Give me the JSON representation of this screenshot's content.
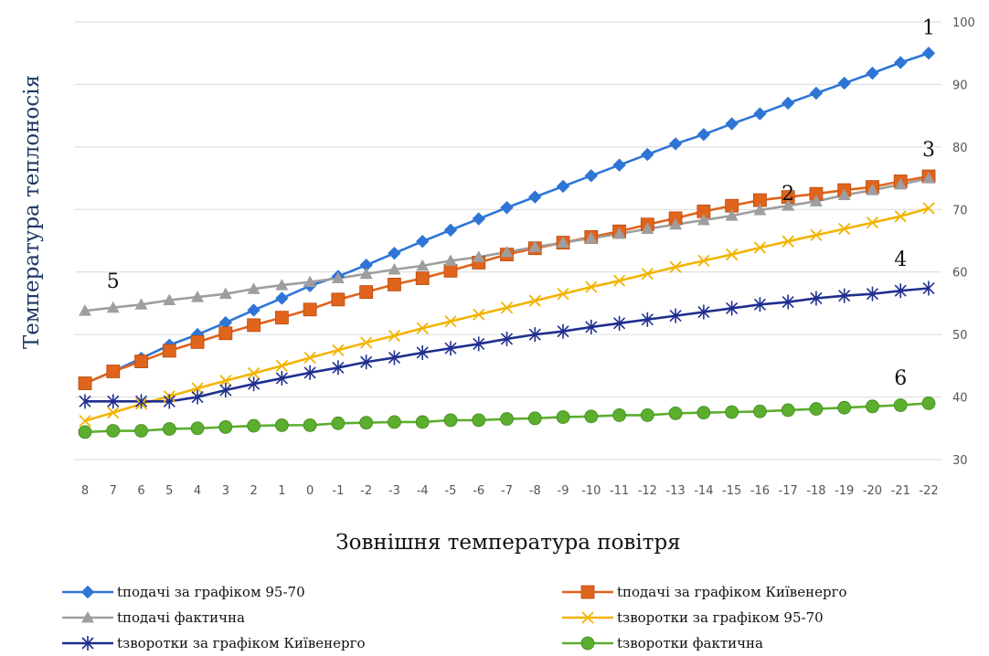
{
  "chart_data": {
    "type": "line",
    "ylabel": "Температура теплоносія",
    "xlabel": "Зовнішня температура повітря",
    "categories": [
      "8",
      "7",
      "6",
      "5",
      "4",
      "3",
      "2",
      "1",
      "0",
      "-1",
      "-2",
      "-3",
      "-4",
      "-5",
      "-6",
      "-7",
      "-8",
      "-9",
      "-10",
      "-11",
      "-12",
      "-13",
      "-14",
      "-15",
      "-16",
      "-17",
      "-18",
      "-19",
      "-20",
      "-21",
      "-22"
    ],
    "ylim": [
      30,
      100
    ],
    "yticks": [
      "30",
      "40",
      "50",
      "60",
      "70",
      "80",
      "90",
      "100"
    ],
    "y_axis_side": "right",
    "grid": "horizontal",
    "legend_position": "bottom",
    "series": [
      {
        "name": "tподачі за графіком 95-70",
        "color": "#2e75d6",
        "marker": "diamond",
        "values": [
          42.2,
          44.1,
          46.2,
          48.3,
          50.0,
          51.9,
          53.9,
          55.8,
          57.8,
          59.3,
          61.1,
          63.0,
          64.9,
          66.7,
          68.5,
          70.3,
          72.0,
          73.7,
          75.4,
          77.1,
          78.8,
          80.5,
          82.0,
          83.7,
          85.3,
          87.0,
          88.6,
          90.2,
          91.8,
          93.5,
          95.0
        ]
      },
      {
        "name": "tподачі за графіком Київенерго",
        "color": "#e0641c",
        "marker": "square",
        "values": [
          42.2,
          44.1,
          45.7,
          47.4,
          48.8,
          50.2,
          51.5,
          52.7,
          54.0,
          55.6,
          56.8,
          58.0,
          59.0,
          60.2,
          61.5,
          62.8,
          63.8,
          64.7,
          65.6,
          66.5,
          67.6,
          68.6,
          69.7,
          70.6,
          71.5,
          72.0,
          72.5,
          73.1,
          73.6,
          74.5,
          75.3
        ]
      },
      {
        "name": "tподачі фактична",
        "color": "#9e9e9e",
        "marker": "triangle",
        "values": [
          53.8,
          54.3,
          54.8,
          55.5,
          56.0,
          56.5,
          57.3,
          57.9,
          58.4,
          59.0,
          59.7,
          60.4,
          61.0,
          61.8,
          62.4,
          63.2,
          64.0,
          64.7,
          65.4,
          66.1,
          66.9,
          67.6,
          68.3,
          69.0,
          69.9,
          70.6,
          71.3,
          72.3,
          73.1,
          74.0,
          75.0
        ]
      },
      {
        "name": "tзворотки за графіком 95-70",
        "color": "#f2b400",
        "marker": "x",
        "values": [
          36.2,
          37.5,
          38.9,
          40.1,
          41.4,
          42.6,
          43.8,
          45.0,
          46.3,
          47.5,
          48.7,
          49.8,
          51.0,
          52.1,
          53.2,
          54.3,
          55.4,
          56.5,
          57.6,
          58.6,
          59.7,
          60.8,
          61.8,
          62.8,
          63.9,
          64.9,
          65.9,
          66.9,
          67.9,
          68.9,
          70.2
        ]
      },
      {
        "name": "tзворотки за графіком Київенерго",
        "color": "#1f2f8f",
        "marker": "star",
        "values": [
          39.3,
          39.3,
          39.3,
          39.3,
          40.0,
          41.1,
          42.1,
          43.0,
          43.9,
          44.7,
          45.6,
          46.3,
          47.1,
          47.8,
          48.5,
          49.3,
          50.0,
          50.5,
          51.2,
          51.8,
          52.4,
          53.0,
          53.6,
          54.2,
          54.8,
          55.2,
          55.8,
          56.2,
          56.5,
          57.0,
          57.4
        ]
      },
      {
        "name": "tзворотки фактична",
        "color": "#5cae2e",
        "marker": "circle",
        "values": [
          34.4,
          34.6,
          34.6,
          34.9,
          35.0,
          35.2,
          35.4,
          35.5,
          35.5,
          35.8,
          35.9,
          36.0,
          36.0,
          36.3,
          36.3,
          36.5,
          36.6,
          36.8,
          36.9,
          37.1,
          37.1,
          37.4,
          37.5,
          37.6,
          37.7,
          37.9,
          38.1,
          38.3,
          38.5,
          38.7,
          39.0
        ]
      }
    ],
    "annotations": [
      {
        "text": "1",
        "x": "-22",
        "y": 98
      },
      {
        "text": "3",
        "x": "-22",
        "y": 78.5
      },
      {
        "text": "2",
        "x": "-17",
        "y": 71.5
      },
      {
        "text": "4",
        "x": "-21",
        "y": 61
      },
      {
        "text": "5",
        "x": "7",
        "y": 57.5
      },
      {
        "text": "6",
        "x": "-21",
        "y": 42
      }
    ]
  }
}
